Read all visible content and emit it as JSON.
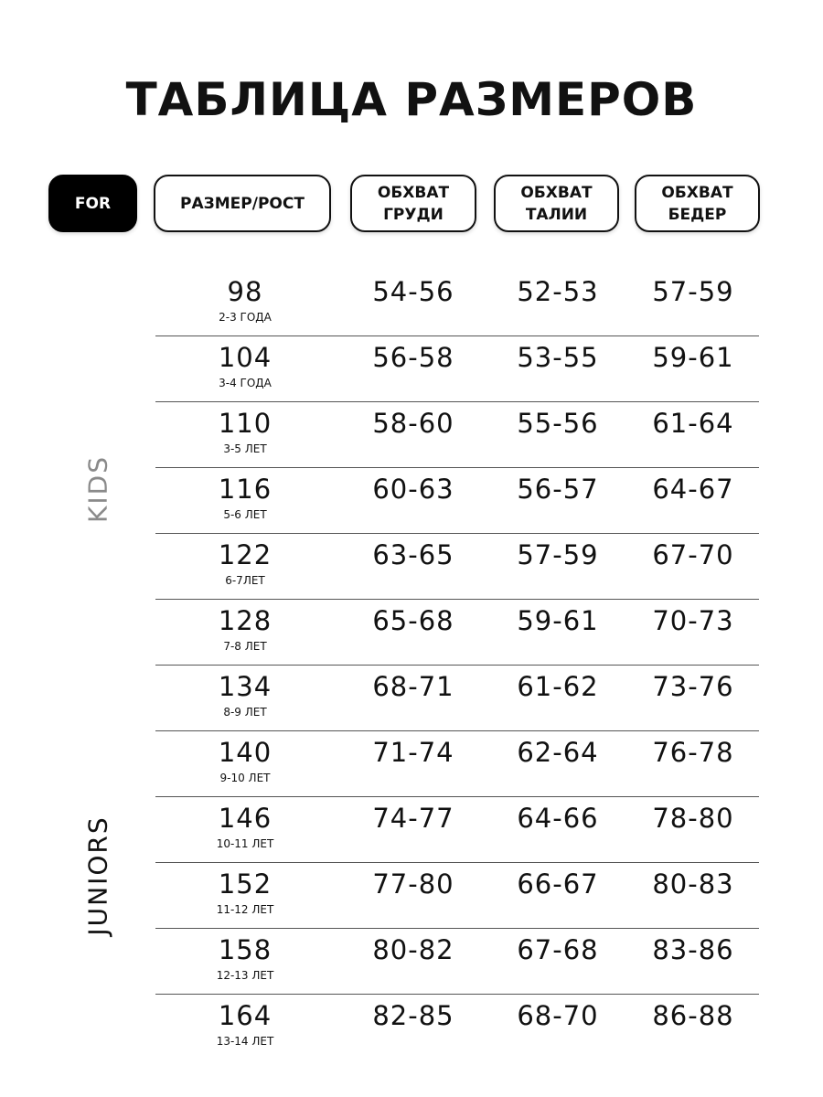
{
  "title": "ТАБЛИЦА РАЗМЕРОВ",
  "header": {
    "for": "FOR",
    "size_height": "РАЗМЕР/РОСТ",
    "chest": [
      "ОБХВАТ",
      "ГРУДИ"
    ],
    "waist": [
      "ОБХВАТ",
      "ТАЛИИ"
    ],
    "hips": [
      "ОБХВАТ",
      "БЕДЕР"
    ]
  },
  "groups": {
    "kids": "KIDS",
    "juniors": "JUNIORS"
  },
  "colors": {
    "kids_label": "#8a8a8a",
    "juniors_label": "#111111",
    "for_bg": "#000000"
  },
  "rows": [
    {
      "size": "98",
      "age": "2-3 ГОДА",
      "chest": "54-56",
      "waist": "52-53",
      "hips": "57-59"
    },
    {
      "size": "104",
      "age": "3-4 ГОДА",
      "chest": "56-58",
      "waist": "53-55",
      "hips": "59-61"
    },
    {
      "size": "110",
      "age": "3-5 ЛЕТ",
      "chest": "58-60",
      "waist": "55-56",
      "hips": "61-64"
    },
    {
      "size": "116",
      "age": "5-6 ЛЕТ",
      "chest": "60-63",
      "waist": "56-57",
      "hips": "64-67"
    },
    {
      "size": "122",
      "age": "6-7ЛЕТ",
      "chest": "63-65",
      "waist": "57-59",
      "hips": "67-70"
    },
    {
      "size": "128",
      "age": "7-8 ЛЕТ",
      "chest": "65-68",
      "waist": "59-61",
      "hips": "70-73"
    },
    {
      "size": "134",
      "age": "8-9 ЛЕТ",
      "chest": "68-71",
      "waist": "61-62",
      "hips": "73-76"
    },
    {
      "size": "140",
      "age": "9-10 ЛЕТ",
      "chest": "71-74",
      "waist": "62-64",
      "hips": "76-78"
    },
    {
      "size": "146",
      "age": "10-11 ЛЕТ",
      "chest": "74-77",
      "waist": "64-66",
      "hips": "78-80"
    },
    {
      "size": "152",
      "age": "11-12 ЛЕТ",
      "chest": "77-80",
      "waist": "66-67",
      "hips": "80-83"
    },
    {
      "size": "158",
      "age": "12-13 ЛЕТ",
      "chest": "80-82",
      "waist": "67-68",
      "hips": "83-86"
    },
    {
      "size": "164",
      "age": "13-14 ЛЕТ",
      "chest": "82-85",
      "waist": "68-70",
      "hips": "86-88"
    }
  ]
}
